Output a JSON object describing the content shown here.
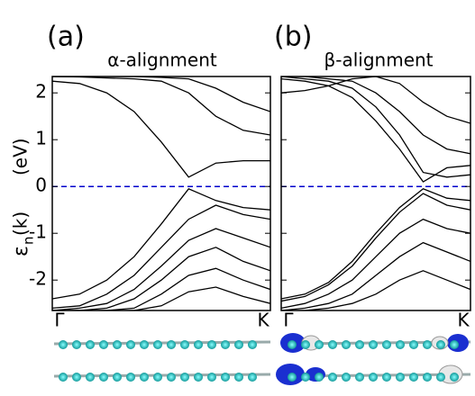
{
  "chart_data": [
    {
      "type": "line",
      "panel": "(a)",
      "title": "α-alignment",
      "ylabel": {
        "symbol": "ε",
        "subscript": "n",
        "argument": "(k)",
        "unit": "(eV)"
      },
      "ylim": [
        -2.65,
        2.35
      ],
      "yticks": [
        2,
        1,
        0,
        -1,
        -2
      ],
      "xlim": [
        0,
        1
      ],
      "xticks": [
        {
          "value": 0,
          "label": "Γ"
        },
        {
          "value": 1,
          "label": "K"
        }
      ],
      "reference_line": {
        "y": 0,
        "color": "#0000cc"
      },
      "x": [
        0,
        0.125,
        0.25,
        0.375,
        0.5,
        0.625,
        0.75,
        0.875,
        1
      ],
      "series": [
        {
          "color": "#000000",
          "values": [
            2.25,
            2.2,
            2.0,
            1.6,
            0.95,
            0.2,
            0.5,
            0.55,
            0.55
          ]
        },
        {
          "color": "#000000",
          "values": [
            2.35,
            2.34,
            2.32,
            2.3,
            2.25,
            2.0,
            1.5,
            1.2,
            1.1
          ]
        },
        {
          "color": "#000000",
          "values": [
            2.35,
            2.35,
            2.35,
            2.35,
            2.33,
            2.3,
            2.1,
            1.8,
            1.6
          ]
        },
        {
          "color": "#000000",
          "values": [
            -2.4,
            -2.3,
            -2.0,
            -1.5,
            -0.8,
            -0.05,
            -0.3,
            -0.45,
            -0.5
          ]
        },
        {
          "color": "#000000",
          "values": [
            -2.6,
            -2.55,
            -2.3,
            -1.9,
            -1.3,
            -0.7,
            -0.4,
            -0.6,
            -0.7
          ]
        },
        {
          "color": "#000000",
          "values": [
            -2.65,
            -2.6,
            -2.5,
            -2.2,
            -1.7,
            -1.15,
            -0.9,
            -1.1,
            -1.3
          ]
        },
        {
          "color": "#000000",
          "values": [
            -2.65,
            -2.65,
            -2.6,
            -2.4,
            -2.0,
            -1.5,
            -1.3,
            -1.6,
            -1.8
          ]
        },
        {
          "color": "#000000",
          "values": [
            -2.65,
            -2.65,
            -2.65,
            -2.6,
            -2.3,
            -1.9,
            -1.75,
            -2.0,
            -2.2
          ]
        },
        {
          "color": "#000000",
          "values": [
            -2.65,
            -2.65,
            -2.65,
            -2.65,
            -2.55,
            -2.25,
            -2.15,
            -2.35,
            -2.5
          ]
        }
      ]
    },
    {
      "type": "line",
      "panel": "(b)",
      "title": "β-alignment",
      "ylim": [
        -2.65,
        2.35
      ],
      "xlim": [
        0,
        1
      ],
      "xticks": [
        {
          "value": 0,
          "label": "Γ"
        },
        {
          "value": 1,
          "label": "K"
        }
      ],
      "reference_line": {
        "y": 0,
        "color": "#0000cc"
      },
      "x": [
        0,
        0.125,
        0.25,
        0.375,
        0.5,
        0.625,
        0.75,
        0.875,
        1
      ],
      "series": [
        {
          "color": "#000000",
          "values": [
            2.3,
            2.25,
            2.15,
            1.9,
            1.4,
            0.8,
            0.1,
            0.4,
            0.45
          ]
        },
        {
          "color": "#000000",
          "values": [
            2.35,
            2.3,
            2.25,
            2.1,
            1.7,
            1.1,
            0.3,
            0.2,
            0.25
          ]
        },
        {
          "color": "#000000",
          "values": [
            2.35,
            2.35,
            2.3,
            2.25,
            2.0,
            1.6,
            1.1,
            0.8,
            0.7
          ]
        },
        {
          "color": "#000000",
          "values": [
            2.0,
            2.05,
            2.15,
            2.3,
            2.35,
            2.2,
            1.8,
            1.5,
            1.35
          ]
        },
        {
          "color": "#000000",
          "values": [
            -2.4,
            -2.3,
            -2.05,
            -1.6,
            -1.0,
            -0.45,
            -0.05,
            -0.25,
            -0.3
          ]
        },
        {
          "color": "#000000",
          "values": [
            -2.45,
            -2.35,
            -2.1,
            -1.7,
            -1.1,
            -0.55,
            -0.15,
            -0.4,
            -0.5
          ]
        },
        {
          "color": "#000000",
          "values": [
            -2.6,
            -2.5,
            -2.3,
            -2.0,
            -1.5,
            -1.0,
            -0.7,
            -0.9,
            -1.0
          ]
        },
        {
          "color": "#000000",
          "values": [
            -2.65,
            -2.6,
            -2.5,
            -2.3,
            -1.9,
            -1.5,
            -1.2,
            -1.4,
            -1.6
          ]
        },
        {
          "color": "#000000",
          "values": [
            -2.65,
            -2.65,
            -2.6,
            -2.5,
            -2.3,
            -2.0,
            -1.8,
            -2.0,
            -2.2
          ]
        }
      ]
    }
  ]
}
